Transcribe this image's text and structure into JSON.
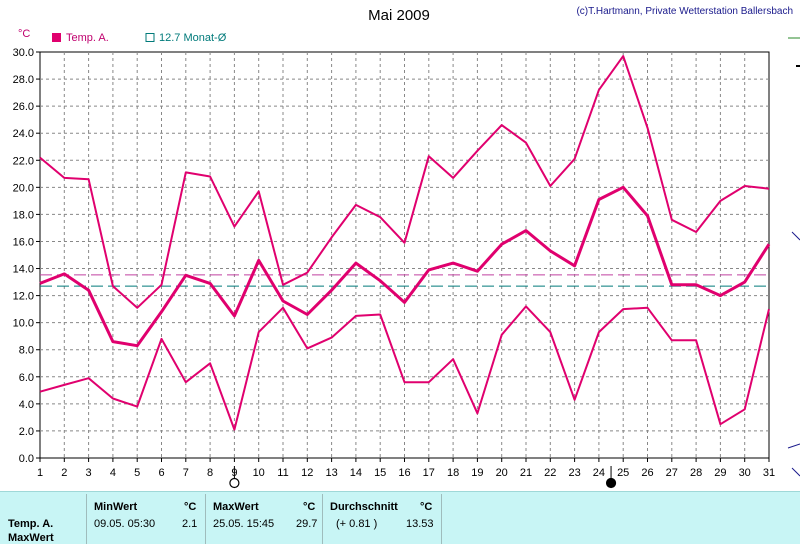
{
  "header": {
    "title": "Mai 2009",
    "credit": "(c)T.Hartmann, Private Wetterstation Ballersbach",
    "unit": "°C"
  },
  "legend": [
    {
      "label": "Temp. A.",
      "color": "#e0006e",
      "filled": true
    },
    {
      "label": "12.7 Monat-Ø",
      "color": "#007a7a",
      "filled": false
    }
  ],
  "chart_data": {
    "type": "line",
    "x": [
      1,
      2,
      3,
      4,
      5,
      6,
      7,
      8,
      9,
      10,
      11,
      12,
      13,
      14,
      15,
      16,
      17,
      18,
      19,
      20,
      21,
      22,
      23,
      24,
      25,
      26,
      27,
      28,
      29,
      30,
      31
    ],
    "x_ticks": [
      "1",
      "2",
      "3",
      "4",
      "5",
      "6",
      "7",
      "8",
      "9",
      "10",
      "11",
      "12",
      "13",
      "14",
      "15",
      "16",
      "17",
      "18",
      "19",
      "20",
      "21",
      "22",
      "23",
      "24",
      "25",
      "26",
      "27",
      "28",
      "29",
      "30",
      "31"
    ],
    "y_ticks": [
      "0.0",
      "2.0",
      "4.0",
      "6.0",
      "8.0",
      "10.0",
      "12.0",
      "14.0",
      "16.0",
      "18.0",
      "20.0",
      "22.0",
      "24.0",
      "26.0",
      "28.0",
      "30.0"
    ],
    "ylim": [
      0,
      30
    ],
    "grid": true,
    "series": [
      {
        "role": "max",
        "color": "#e0006e",
        "values": [
          22.2,
          20.7,
          20.6,
          12.7,
          11.1,
          12.8,
          21.1,
          20.8,
          17.1,
          19.7,
          12.8,
          13.7,
          16.3,
          18.7,
          17.8,
          15.9,
          22.3,
          20.7,
          22.7,
          24.6,
          23.3,
          20.1,
          22.1,
          27.2,
          29.7,
          24.4,
          17.6,
          16.7,
          19.0,
          20.1,
          19.9
        ]
      },
      {
        "role": "avg",
        "name": "Temp. A.",
        "color": "#e0006e",
        "values": [
          12.9,
          13.6,
          12.4,
          8.6,
          8.3,
          10.8,
          13.5,
          12.9,
          10.5,
          14.6,
          11.6,
          10.6,
          12.4,
          14.4,
          13.1,
          11.5,
          13.9,
          14.4,
          13.8,
          15.8,
          16.8,
          15.3,
          14.2,
          19.1,
          20.0,
          17.9,
          12.8,
          12.8,
          12.0,
          13.0,
          15.8
        ]
      },
      {
        "role": "min",
        "color": "#e0006e",
        "values": [
          4.9,
          5.4,
          5.9,
          4.4,
          3.8,
          8.8,
          5.6,
          7.0,
          2.1,
          9.3,
          11.1,
          8.1,
          8.9,
          10.5,
          10.6,
          5.6,
          5.6,
          7.3,
          3.3,
          9.1,
          11.2,
          9.3,
          4.3,
          9.3,
          11.0,
          11.1,
          8.7,
          8.7,
          2.5,
          3.6,
          11.0
        ]
      }
    ],
    "reference_lines": [
      {
        "label": "12.7 Monat-Ø",
        "value": 12.7,
        "color": "#007a7a",
        "style": "dashed"
      },
      {
        "value": 13.53,
        "color": "#c040a0",
        "style": "dashed"
      }
    ],
    "moon_phases": [
      {
        "day": 9,
        "phase": "full"
      },
      {
        "day": 24.5,
        "phase": "new"
      }
    ]
  },
  "stats": {
    "row_label_1": "Temp. A.",
    "row_label_2": "MaxWert",
    "min": {
      "label": "MinWert",
      "unit": "°C",
      "time": "09.05.  05:30",
      "value": "2.1"
    },
    "max": {
      "label": "MaxWert",
      "unit": "°C",
      "time": "25.05.  15:45",
      "value": "29.7"
    },
    "avg": {
      "label": "Durchschnitt",
      "unit": "°C",
      "delta": "(+ 0.81 )",
      "value": "13.53"
    }
  }
}
